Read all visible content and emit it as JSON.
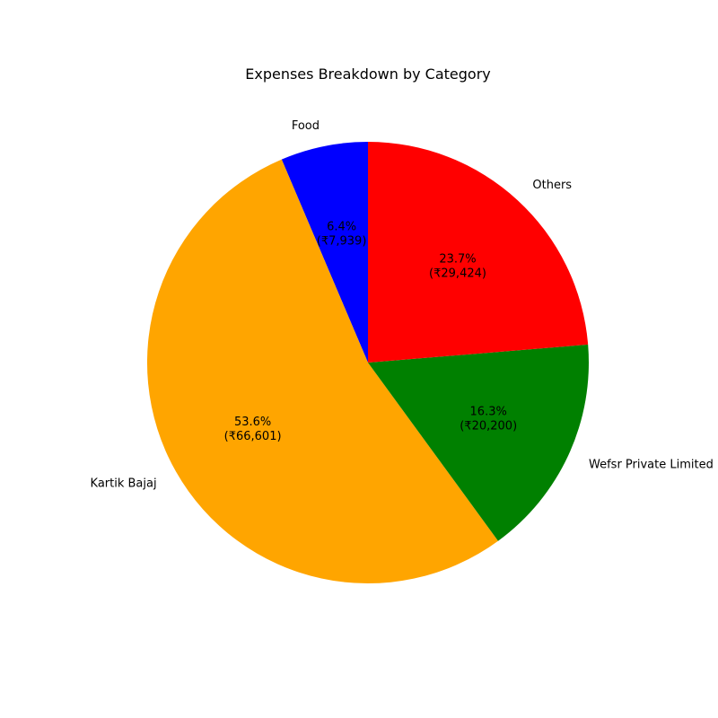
{
  "chart_data": {
    "type": "pie",
    "title": "Expenses Breakdown by Category",
    "start_angle_deg": 90,
    "direction": "counterclockwise",
    "slices": [
      {
        "label": "Food",
        "percent_label": "6.4%",
        "amount_label": "(₹7,939)",
        "value": 7939,
        "color": "#0000ff"
      },
      {
        "label": "Kartik Bajaj",
        "percent_label": "53.6%",
        "amount_label": "(₹66,601)",
        "value": 66601,
        "color": "#ffa500"
      },
      {
        "label": "Wefsr Private Limited",
        "percent_label": "16.3%",
        "amount_label": "(₹20,200)",
        "value": 20200,
        "color": "#008000"
      },
      {
        "label": "Others",
        "percent_label": "23.7%",
        "amount_label": "(₹29,424)",
        "value": 29424,
        "color": "#ff0000"
      }
    ]
  }
}
